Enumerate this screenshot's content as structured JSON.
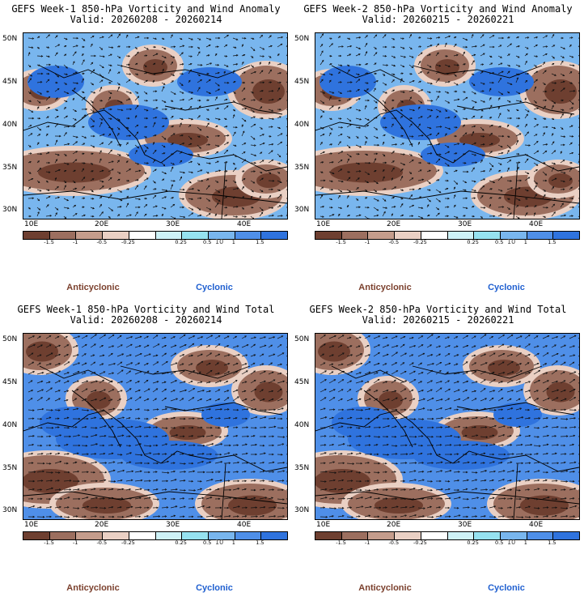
{
  "colors": {
    "anticyclonic_label": "#7a3f2c",
    "cyclonic_label": "#1f5fd0",
    "brown_dark": "#6e3f30",
    "brown_mid": "#9c6f5f",
    "brown_light": "#c59d8c",
    "brown_pale": "#ead0c4",
    "white": "#ffffff",
    "cyan_pale": "#cef2f7",
    "cyan": "#96e2f0",
    "blue_light": "#79b6ee",
    "blue_mid": "#4f8fe8",
    "blue_dark": "#2f73de",
    "coast": "#000000",
    "arrow": "#111111"
  },
  "colorbar": {
    "tick_labels": [
      "-1.5",
      "-1",
      "-0.5",
      "-0.25",
      "0.25",
      "0.5",
      "1",
      "1.5"
    ],
    "unit": "10"
  },
  "axes": {
    "lat_labels": [
      "50N",
      "45N",
      "40N",
      "35N",
      "30N"
    ],
    "lon_labels": [
      "10E",
      "20E",
      "30E",
      "40E"
    ]
  },
  "panels": [
    {
      "title": "GEFS Week-1 850-hPa Vorticity and Wind Anomaly",
      "valid": "Valid: 20260208 - 20260214",
      "field": "anomaly",
      "week": 1,
      "anticyclonic_label": "Anticyclonic",
      "cyclonic_label": "Cyclonic"
    },
    {
      "title": "GEFS Week-2 850-hPa Vorticity and Wind Anomaly",
      "valid": "Valid: 20260215 - 20260221",
      "field": "anomaly",
      "week": 2,
      "anticyclonic_label": "Anticyclonic",
      "cyclonic_label": "Cyclonic"
    },
    {
      "title": "GEFS Week-1 850-hPa Vorticity and Wind Total",
      "valid": "Valid: 20260208 - 20260214",
      "field": "total",
      "week": 1,
      "anticyclonic_label": "Anticyclonic",
      "cyclonic_label": "Cyclonic"
    },
    {
      "title": "GEFS Week-2 850-hPa Vorticity and Wind Total",
      "valid": "Valid: 20260215 - 20260221",
      "field": "total",
      "week": 2,
      "anticyclonic_label": "Anticyclonic",
      "cyclonic_label": "Cyclonic"
    }
  ]
}
